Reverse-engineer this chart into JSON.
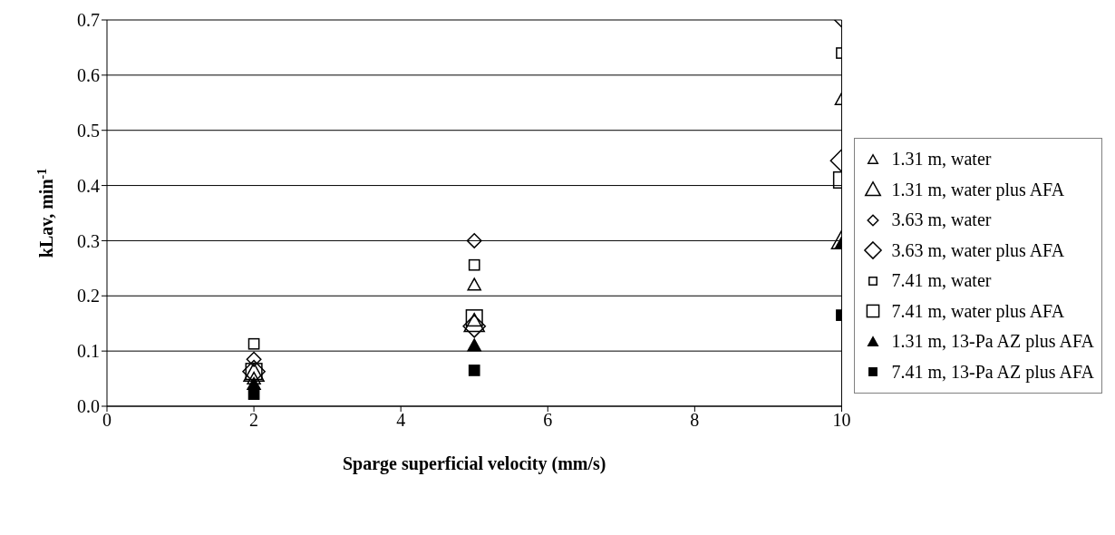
{
  "chart_data": {
    "type": "scatter",
    "xlabel": "Sparge superficial velocity (mm/s)",
    "ylabel": "kLav, min$^{-1}$",
    "x": [
      2,
      5,
      10
    ],
    "xlim": [
      0,
      10
    ],
    "xticks": [
      0,
      2,
      4,
      6,
      8,
      10
    ],
    "ylim": [
      0,
      0.7
    ],
    "yticks": [
      {
        "value": 0,
        "label": "0.0"
      },
      0.1,
      0.2,
      0.3,
      0.4,
      0.5,
      0.6,
      0.7
    ],
    "grid": "y",
    "legend": "right",
    "series": [
      {
        "name": "1.31 m, water",
        "color": "#000000",
        "marker": "triangle",
        "values": [
          0.05,
          0.22,
          0.556
        ]
      },
      {
        "name": "1.31 m, water plus AFA",
        "color": "#000000",
        "marker": "triangle",
        "values": [
          0.06,
          0.15,
          0.3
        ]
      },
      {
        "name": "3.63 m, water",
        "color": "#000000",
        "marker": "diamond",
        "values": [
          0.085,
          0.3,
          0.7
        ]
      },
      {
        "name": "3.63 m, water plus AFA",
        "color": "#000000",
        "marker": "diamond",
        "values": [
          0.063,
          0.145,
          0.445
        ]
      },
      {
        "name": "7.41 m, water",
        "color": "#000000",
        "marker": "square",
        "values": [
          0.113,
          0.256,
          0.64
        ]
      },
      {
        "name": "7.41 m, water plus AFA",
        "color": "#000000",
        "marker": "square",
        "values": [
          0.063,
          0.16,
          0.41
        ]
      },
      {
        "name": "1.31 m, 13-Pa AZ plus AFA",
        "color": "#000000",
        "marker": "triangle",
        "values": [
          0.04,
          0.11,
          0.295
        ]
      },
      {
        "name": "7.41 m, 13-Pa AZ plus AFA",
        "color": "#000000",
        "marker": "square",
        "values": [
          0.022,
          0.065,
          0.165
        ]
      }
    ]
  }
}
